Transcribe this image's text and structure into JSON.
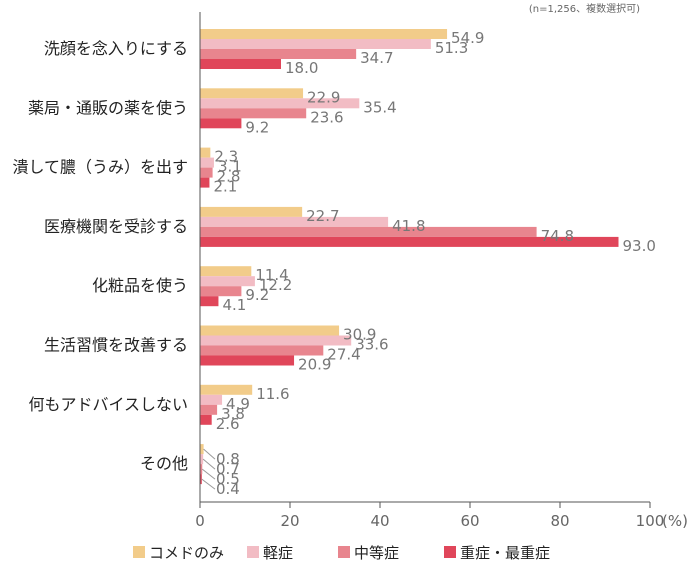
{
  "chart_data": {
    "type": "bar",
    "orientation": "horizontal",
    "note": "(n=1,256、複数選択可)",
    "categories": [
      "洗顔を念入りにする",
      "薬局・通販の薬を使う",
      "潰して膿（うみ）を出す",
      "医療機関を受診する",
      "化粧品を使う",
      "生活習慣を改善する",
      "何もアドバイスしない",
      "その他"
    ],
    "series": [
      {
        "name": "コメドのみ",
        "color": "#f2cc8a",
        "values": [
          54.9,
          22.9,
          2.3,
          22.7,
          11.4,
          30.9,
          11.6,
          0.8
        ]
      },
      {
        "name": "軽症",
        "color": "#f2bcc4",
        "values": [
          51.3,
          35.4,
          3.1,
          41.8,
          12.2,
          33.6,
          4.9,
          0.7
        ]
      },
      {
        "name": "中等症",
        "color": "#e8858e",
        "values": [
          34.7,
          23.6,
          2.8,
          74.8,
          9.2,
          27.4,
          3.8,
          0.5
        ]
      },
      {
        "name": "重症・最重症",
        "color": "#e0465a",
        "values": [
          18.0,
          9.2,
          2.1,
          93.0,
          4.1,
          20.9,
          2.6,
          0.4
        ]
      }
    ],
    "xlim": [
      0,
      100
    ],
    "xticks": [
      "0",
      "20",
      "40",
      "60",
      "80",
      "100"
    ],
    "xunit": "(%)",
    "grid": false,
    "legend_position": "bottom"
  }
}
